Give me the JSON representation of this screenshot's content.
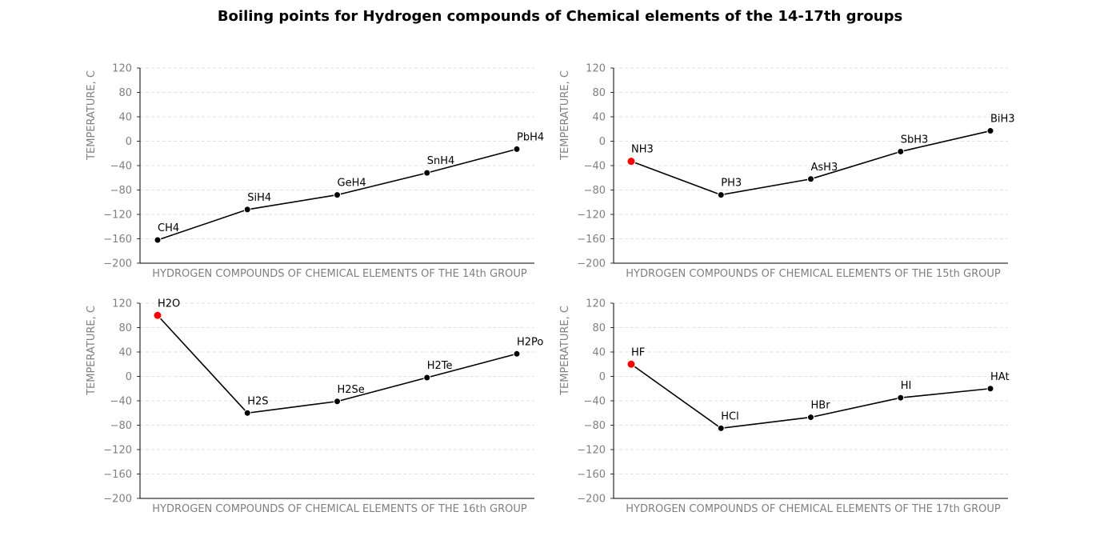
{
  "figure": {
    "title": "Boiling points for Hydrogen compounds of Chemical elements of the 14-17th groups"
  },
  "colors": {
    "line": "#000000",
    "point": "#000000",
    "highlight": "#ff0000",
    "grid": "#d9d9d9",
    "tick_text": "#808080",
    "axis_label": "#808080"
  },
  "chart_data": [
    {
      "type": "line",
      "xlabel": "HYDROGEN COMPOUNDS OF CHEMICAL ELEMENTS OF THE 14th GROUP",
      "ylabel": "TEMPERATURE, C",
      "ylim": [
        -200,
        120
      ],
      "yticks": [
        -200,
        -160,
        -120,
        -80,
        -40,
        0,
        40,
        80,
        120
      ],
      "grid": "y-dashed",
      "x": [
        "CH4",
        "SiH4",
        "GeH4",
        "SnH4",
        "PbH4"
      ],
      "y": [
        -162,
        -112,
        -88,
        -52,
        -13
      ],
      "highlight": []
    },
    {
      "type": "line",
      "xlabel": "HYDROGEN COMPOUNDS OF CHEMICAL ELEMENTS OF THE 15th GROUP",
      "ylabel": "TEMPERATURE, C",
      "ylim": [
        -200,
        120
      ],
      "yticks": [
        -200,
        -160,
        -120,
        -80,
        -40,
        0,
        40,
        80,
        120
      ],
      "grid": "y-dashed",
      "x": [
        "NH3",
        "PH3",
        "AsH3",
        "SbH3",
        "BiH3"
      ],
      "y": [
        -33,
        -88,
        -62,
        -17,
        17
      ],
      "highlight": [
        0
      ]
    },
    {
      "type": "line",
      "xlabel": "HYDROGEN COMPOUNDS OF CHEMICAL ELEMENTS OF THE 16th GROUP",
      "ylabel": "TEMPERATURE, C",
      "ylim": [
        -200,
        120
      ],
      "yticks": [
        -200,
        -160,
        -120,
        -80,
        -40,
        0,
        40,
        80,
        120
      ],
      "grid": "y-dashed",
      "x": [
        "H2O",
        "H2S",
        "H2Se",
        "H2Te",
        "H2Po"
      ],
      "y": [
        100,
        -60,
        -41,
        -2,
        37
      ],
      "highlight": [
        0
      ]
    },
    {
      "type": "line",
      "xlabel": "HYDROGEN COMPOUNDS OF CHEMICAL ELEMENTS OF THE 17th GROUP",
      "ylabel": "TEMPERATURE, C",
      "ylim": [
        -200,
        120
      ],
      "yticks": [
        -200,
        -160,
        -120,
        -80,
        -40,
        0,
        40,
        80,
        120
      ],
      "grid": "y-dashed",
      "x": [
        "HF",
        "HCl",
        "HBr",
        "HI",
        "HAt"
      ],
      "y": [
        20,
        -85,
        -67,
        -35,
        -20
      ],
      "highlight": [
        0
      ]
    }
  ]
}
